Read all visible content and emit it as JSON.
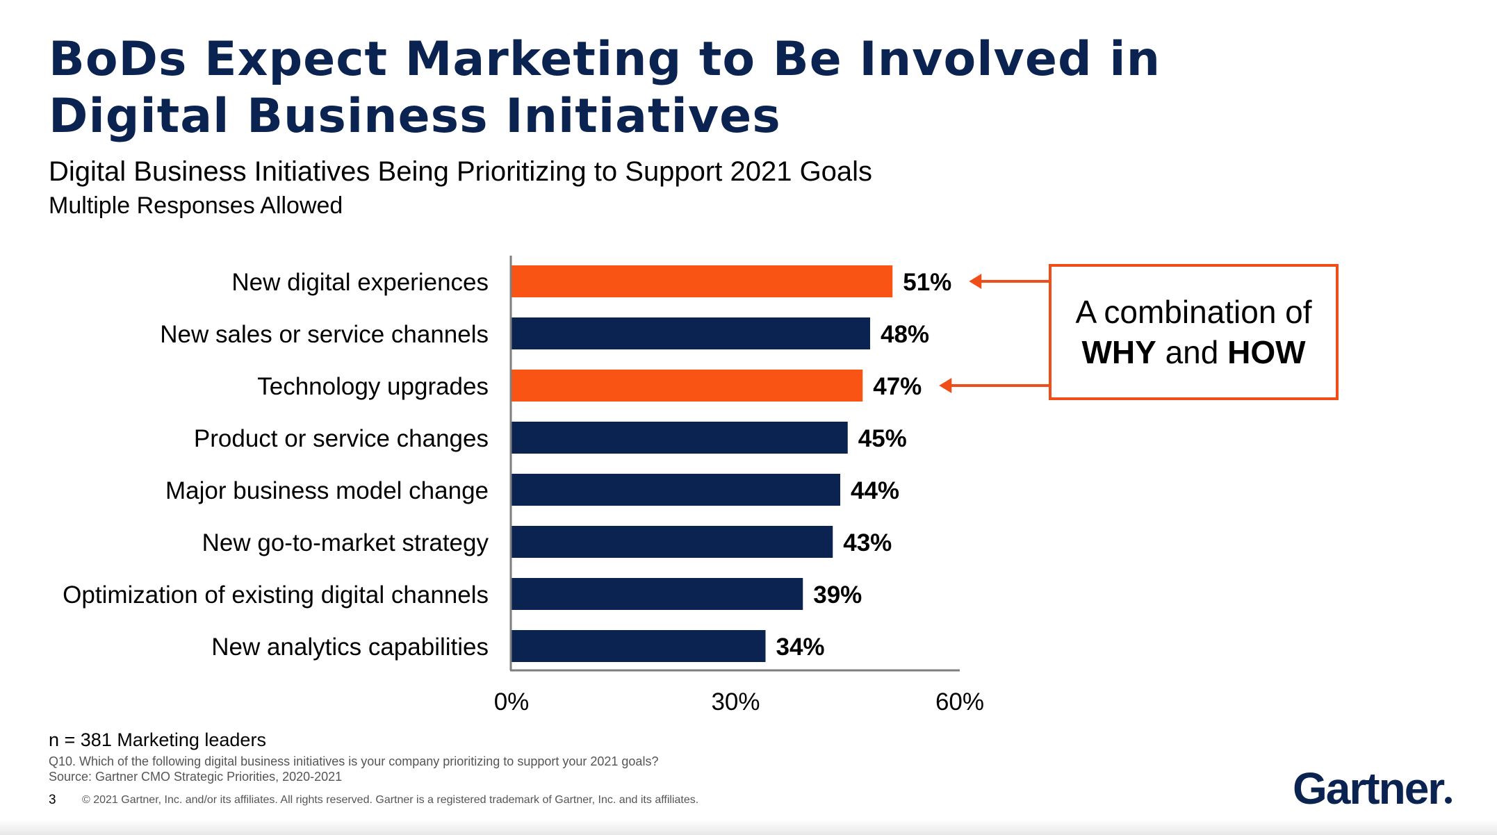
{
  "slide": {
    "title": "BoDs Expect Marketing to Be Involved in Digital Business Initiatives",
    "subtitle": "Digital Business Initiatives Being Prioritizing to Support 2021 Goals",
    "subnote": "Multiple Responses Allowed",
    "sample_note": "n = 381 Marketing leaders",
    "question_note": "Q10. Which of the following digital business initiatives is your company prioritizing to support your 2021 goals?",
    "source_note": "Source: Gartner CMO Strategic Priorities, 2020-2021",
    "page_number": "3",
    "copyright": "© 2021 Gartner, Inc. and/or its affiliates. All rights reserved. Gartner is a registered trademark of Gartner, Inc. and its affiliates.",
    "logo_text": "Gartner"
  },
  "callout": {
    "line1": "A combination of",
    "why": "WHY",
    "and": " and ",
    "how": "HOW"
  },
  "colors": {
    "highlight": "#fa5415",
    "primary": "#0b2350",
    "callout_border": "#f04e18"
  },
  "chart_data": {
    "type": "bar",
    "orientation": "horizontal",
    "categories": [
      "New digital experiences",
      "New sales or service channels",
      "Technology upgrades",
      "Product or service changes",
      "Major business model change",
      "New go-to-market strategy",
      "Optimization of existing digital channels",
      "New analytics capabilities"
    ],
    "values": [
      51,
      48,
      47,
      45,
      44,
      43,
      39,
      34
    ],
    "value_labels": [
      "51%",
      "48%",
      "47%",
      "45%",
      "44%",
      "43%",
      "39%",
      "34%"
    ],
    "highlighted": [
      true,
      false,
      true,
      false,
      false,
      false,
      false,
      false
    ],
    "xlim": [
      0,
      60
    ],
    "x_ticks": [
      0,
      30,
      60
    ],
    "x_tick_labels": [
      "0%",
      "30%",
      "60%"
    ],
    "grid": false
  }
}
